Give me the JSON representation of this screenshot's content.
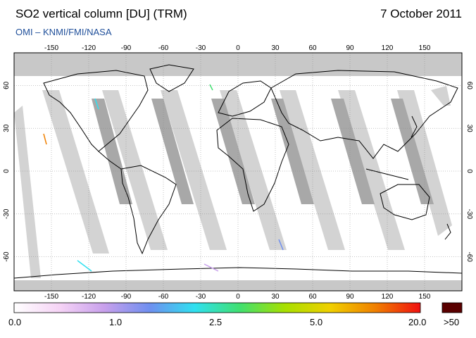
{
  "header": {
    "title": "SO2 vertical column [DU] (TRM)",
    "date": "7 October 2011",
    "credit": "OMI – KNMI/FMI/NASA"
  },
  "map": {
    "lon_ticks": [
      "-150",
      "-120",
      "-90",
      "-60",
      "-30",
      "0",
      "30",
      "60",
      "90",
      "120",
      "150"
    ],
    "lat_ticks": [
      "60",
      "30",
      "0",
      "-30",
      "-60"
    ],
    "colors": {
      "polar_nodata": "#c8c8c8",
      "swath_light": "#d3d3d3",
      "swath_dark": "#a8a8a8",
      "coast": "#000000"
    }
  },
  "colorbar": {
    "labels": [
      "0.0",
      "1.0",
      "2.5",
      "5.0",
      "20.0"
    ],
    "overflow_label": ">50",
    "overflow_color": "#5a0000",
    "gradient": [
      "#ffffff",
      "#f6d4f6",
      "#c8a0ec",
      "#6f8ff0",
      "#2fe0f0",
      "#40e070",
      "#a8e000",
      "#f0d000",
      "#f08000",
      "#f01010"
    ]
  }
}
